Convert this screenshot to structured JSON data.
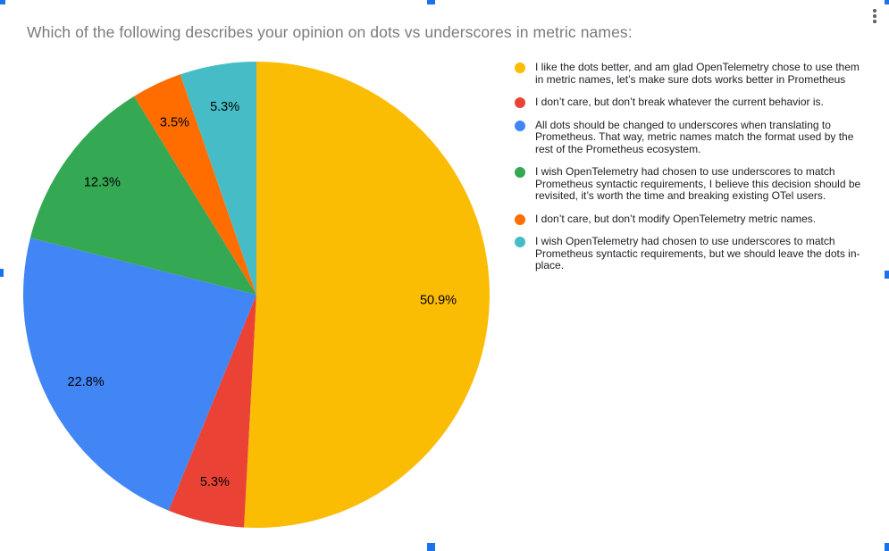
{
  "chart_data": {
    "type": "pie",
    "title": "Which of the following describes your opinion on dots vs underscores in metric names:",
    "legend_position": "right",
    "direction": "clockwise",
    "start_angle_deg": 0,
    "slices": [
      {
        "label": "I like the dots better, and am glad OpenTelemetry chose to use them in metric names, let’s make sure dots works better in Prometheus",
        "value": 50.9,
        "display": "50.9%",
        "color": "#FBBC04"
      },
      {
        "label": "I don’t care, but don’t break whatever the current behavior is.",
        "value": 5.3,
        "display": "5.3%",
        "color": "#EA4335"
      },
      {
        "label": "All dots should be changed to underscores when translating to Prometheus. That way, metric names match the format used by the rest of the Prometheus ecosystem.",
        "value": 22.8,
        "display": "22.8%",
        "color": "#4285F4"
      },
      {
        "label": "I wish OpenTelemetry had chosen to use underscores to match Prometheus syntactic requirements, I believe this decision should be revisited, it’s worth the time and breaking existing OTel users.",
        "value": 12.3,
        "display": "12.3%",
        "color": "#34A853"
      },
      {
        "label": "I don’t care, but don’t modify OpenTelemetry metric names.",
        "value": 3.5,
        "display": "3.5%",
        "color": "#FF6D01"
      },
      {
        "label": "I wish OpenTelemetry had chosen to use underscores to match Prometheus syntactic requirements, but we should leave the dots in-place.",
        "value": 5.3,
        "display": "5.3%",
        "color": "#46BDC6"
      }
    ]
  },
  "ui": {
    "title_color": "#7B7B7B",
    "slice_label_color": "#000000",
    "legend_text_color": "#202124",
    "selection_handle_color": "#1A73E8",
    "menu_dots_color": "#5F6368"
  }
}
